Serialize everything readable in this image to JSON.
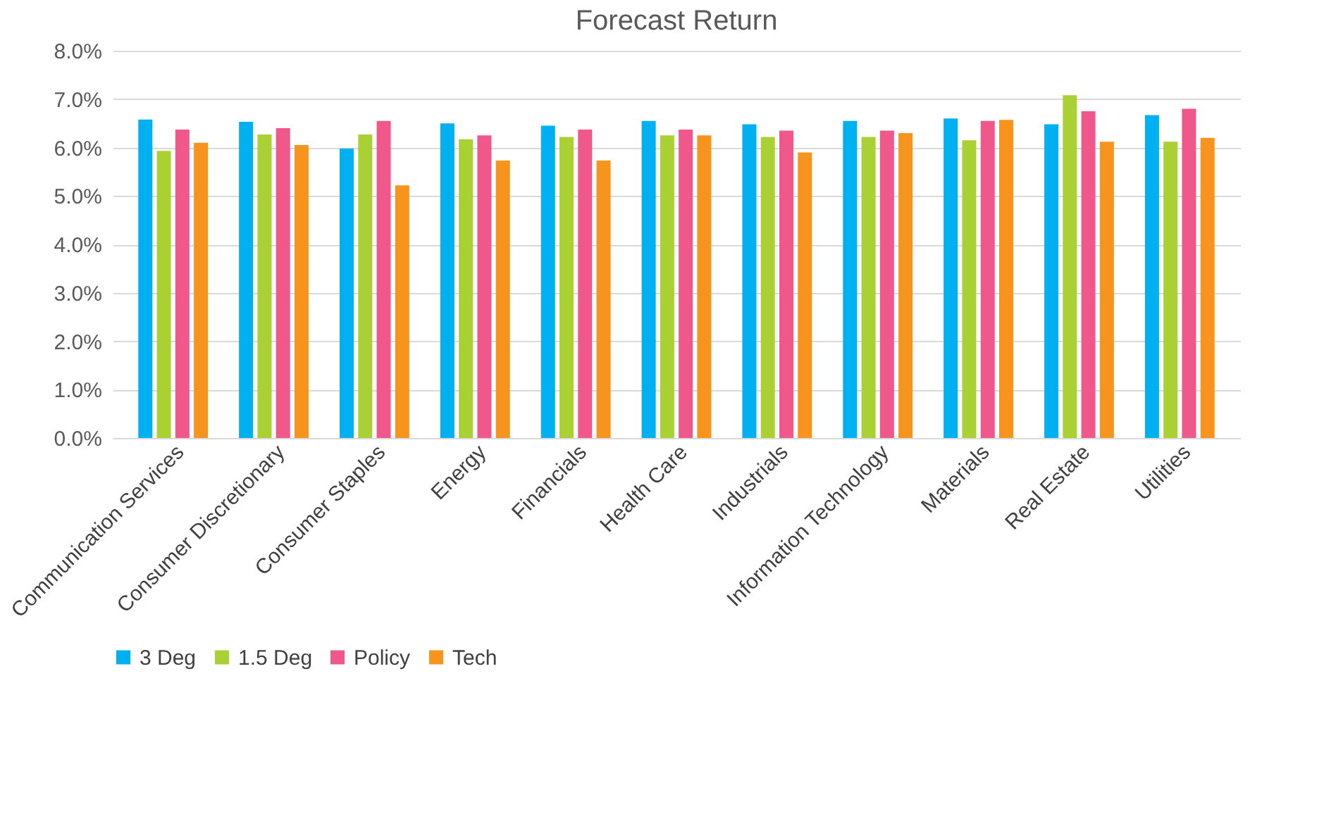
{
  "chart_data": {
    "type": "bar",
    "title": "Forecast Return",
    "categories": [
      "Communication Services",
      "Consumer Discretionary",
      "Consumer Staples",
      "Energy",
      "Financials",
      "Health Care",
      "Industrials",
      "Information Technology",
      "Materials",
      "Real Estate",
      "Utilities"
    ],
    "series": [
      {
        "name": "3 Deg",
        "color": "#00b0f0",
        "values": [
          6.58,
          6.53,
          5.98,
          6.5,
          6.45,
          6.55,
          6.48,
          6.55,
          6.6,
          6.48,
          6.67
        ]
      },
      {
        "name": "1.5 Deg",
        "color": "#a9d134",
        "values": [
          5.93,
          6.27,
          6.27,
          6.17,
          6.22,
          6.25,
          6.22,
          6.22,
          6.15,
          7.08,
          6.12
        ]
      },
      {
        "name": "Policy",
        "color": "#f0578a",
        "values": [
          6.37,
          6.4,
          6.55,
          6.25,
          6.37,
          6.37,
          6.35,
          6.35,
          6.55,
          6.75,
          6.8
        ]
      },
      {
        "name": "Tech",
        "color": "#f7941d",
        "values": [
          6.1,
          6.05,
          5.22,
          5.73,
          5.73,
          6.25,
          5.9,
          6.3,
          6.57,
          6.12,
          6.2
        ]
      }
    ],
    "ylim": [
      0,
      8
    ],
    "yticks": [
      {
        "value": 0,
        "label": "0.0%"
      },
      {
        "value": 1,
        "label": "1.0%"
      },
      {
        "value": 2,
        "label": "2.0%"
      },
      {
        "value": 3,
        "label": "3.0%"
      },
      {
        "value": 4,
        "label": "4.0%"
      },
      {
        "value": 5,
        "label": "5.0%"
      },
      {
        "value": 6,
        "label": "6.0%"
      },
      {
        "value": 7,
        "label": "7.0%"
      },
      {
        "value": 8,
        "label": "8.0%"
      }
    ],
    "grid": "y",
    "legend": "bottom"
  }
}
